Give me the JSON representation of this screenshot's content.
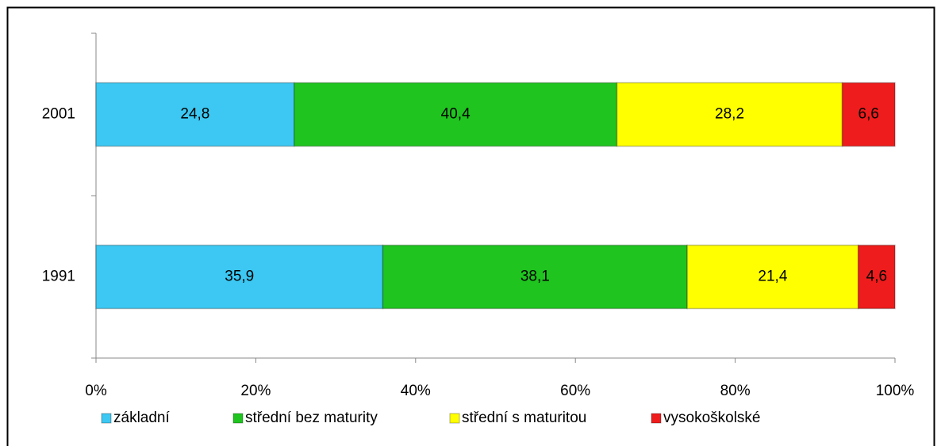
{
  "chart_data": {
    "type": "stacked-bar-horizontal",
    "categories": [
      "2001",
      "1991"
    ],
    "series": [
      {
        "name": "základní",
        "color": "#3cc8f2",
        "values": [
          24.8,
          35.9
        ],
        "value_labels": [
          "24,8",
          "35,9"
        ]
      },
      {
        "name": "střední bez maturity",
        "color": "#1fc41f",
        "values": [
          40.4,
          38.1
        ],
        "value_labels": [
          "40,4",
          "38,1"
        ]
      },
      {
        "name": "střední s maturitou",
        "color": "#ffff00",
        "values": [
          28.2,
          21.4
        ],
        "value_labels": [
          "28,2",
          "21,4"
        ]
      },
      {
        "name": "vysokoškolské",
        "color": "#ee1c1c",
        "values": [
          6.6,
          4.6
        ],
        "value_labels": [
          "6,6",
          "4,6"
        ]
      }
    ],
    "xlim": [
      0,
      100
    ],
    "xticks": [
      {
        "value": 0,
        "label": "0%"
      },
      {
        "value": 20,
        "label": "20%"
      },
      {
        "value": 40,
        "label": "40%"
      },
      {
        "value": 60,
        "label": "60%"
      },
      {
        "value": 80,
        "label": "80%"
      },
      {
        "value": 100,
        "label": "100%"
      }
    ],
    "legend": "bottom"
  }
}
